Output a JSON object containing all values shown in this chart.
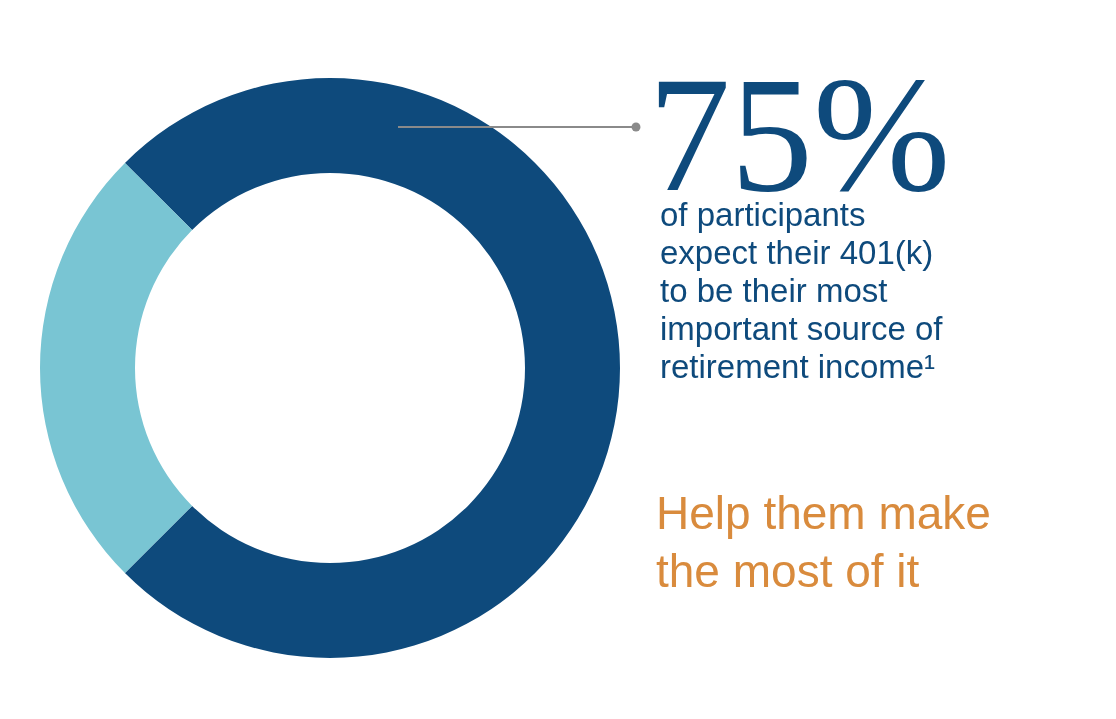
{
  "chart_data": {
    "type": "donut",
    "categories": [
      null,
      null
    ],
    "values": [
      75,
      25
    ],
    "colors": [
      "#0e4a7c",
      "#79c5d3"
    ],
    "value_labels": [
      "75%",
      null
    ],
    "annotations": [
      "of participants\nexpect their 401(k)\nto be their most\nimportant source of\nretirement income¹",
      "Help them make\nthe most of it"
    ]
  }
}
